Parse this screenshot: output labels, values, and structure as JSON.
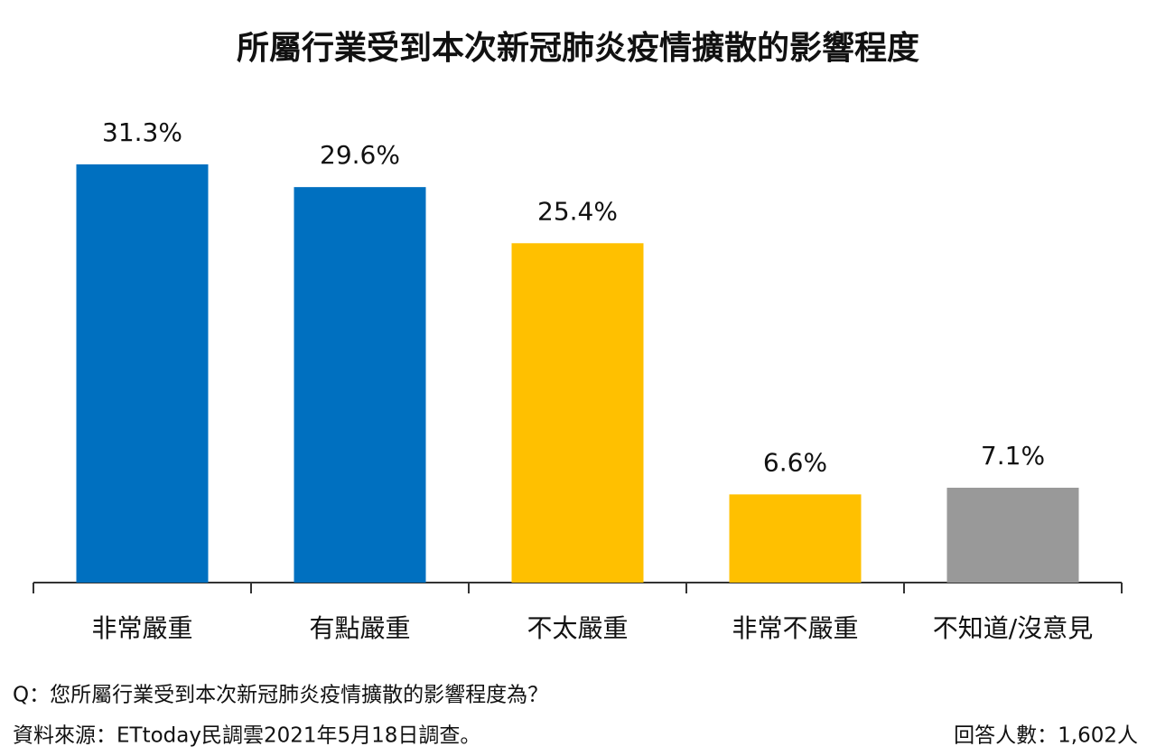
{
  "chart_data": {
    "type": "bar",
    "title": "所屬行業受到本次新冠肺炎疫情擴散的影響程度",
    "categories": [
      "非常嚴重",
      "有點嚴重",
      "不太嚴重",
      "非常不嚴重",
      "不知道/沒意見"
    ],
    "values": [
      31.3,
      29.6,
      25.4,
      6.6,
      7.1
    ],
    "value_labels": [
      "31.3%",
      "29.6%",
      "25.4%",
      "6.6%",
      "7.1%"
    ],
    "colors": [
      "#0070c0",
      "#0070c0",
      "#ffc000",
      "#ffc000",
      "#999999"
    ],
    "question": "Q：您所屬行業受到本次新冠肺炎疫情擴散的影響程度為？",
    "source": "資料來源：ETtoday民調雲2021年5月18日調查。",
    "respondents": "回答人數：1,602人"
  }
}
